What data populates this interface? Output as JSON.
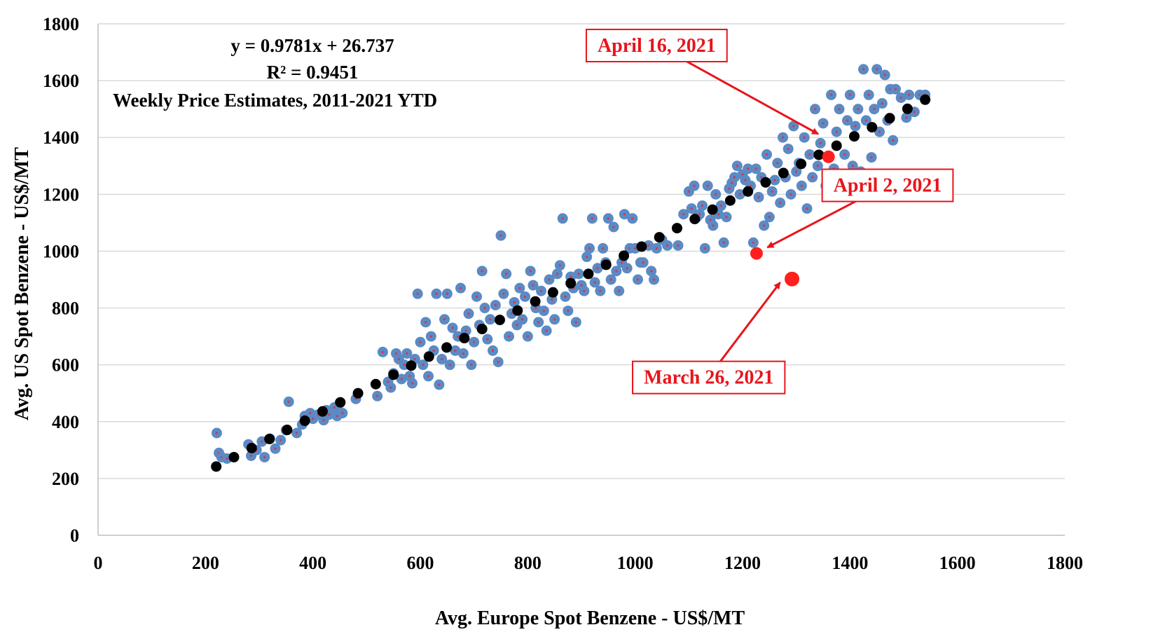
{
  "chart_data": {
    "type": "scatter",
    "xlabel": "Avg. Europe Spot Benzene - US$/MT",
    "ylabel": "Avg. US Spot Benzene - US$/MT",
    "xlim": [
      0,
      1800
    ],
    "ylim": [
      0,
      1800
    ],
    "x_ticks": [
      0,
      200,
      400,
      600,
      800,
      1000,
      1200,
      1400,
      1600,
      1800
    ],
    "y_ticks": [
      0,
      200,
      400,
      600,
      800,
      1000,
      1200,
      1400,
      1600,
      1800
    ],
    "grid": "horizontal",
    "legend": "none",
    "annotations": {
      "equation": "y = 0.9781x + 26.737",
      "r_squared": "R² = 0.9451",
      "note": "Weekly  Price Estimates, 2011-2021 YTD"
    },
    "colors": {
      "weekly": "#5b8ac4",
      "weekly_dot": "#d9364a",
      "fit": "#000000",
      "highlight": "#ff1f1f",
      "callout": "#e8141b"
    },
    "series": [
      {
        "role": "weekly",
        "points": [
          [
            221,
            360
          ],
          [
            225,
            290
          ],
          [
            230,
            275
          ],
          [
            240,
            270
          ],
          [
            280,
            320
          ],
          [
            285,
            280
          ],
          [
            295,
            300
          ],
          [
            305,
            330
          ],
          [
            310,
            275
          ],
          [
            320,
            340
          ],
          [
            330,
            305
          ],
          [
            340,
            335
          ],
          [
            350,
            370
          ],
          [
            355,
            470
          ],
          [
            370,
            360
          ],
          [
            380,
            390
          ],
          [
            385,
            420
          ],
          [
            395,
            430
          ],
          [
            400,
            410
          ],
          [
            410,
            425
          ],
          [
            420,
            405
          ],
          [
            425,
            440
          ],
          [
            430,
            425
          ],
          [
            440,
            450
          ],
          [
            445,
            420
          ],
          [
            450,
            465
          ],
          [
            455,
            430
          ],
          [
            480,
            480
          ],
          [
            520,
            490
          ],
          [
            530,
            645
          ],
          [
            540,
            540
          ],
          [
            545,
            520
          ],
          [
            550,
            570
          ],
          [
            555,
            640
          ],
          [
            560,
            620
          ],
          [
            565,
            550
          ],
          [
            570,
            600
          ],
          [
            575,
            640
          ],
          [
            580,
            560
          ],
          [
            585,
            535
          ],
          [
            590,
            620
          ],
          [
            595,
            850
          ],
          [
            600,
            680
          ],
          [
            605,
            600
          ],
          [
            610,
            750
          ],
          [
            615,
            560
          ],
          [
            620,
            700
          ],
          [
            625,
            650
          ],
          [
            630,
            850
          ],
          [
            635,
            530
          ],
          [
            640,
            620
          ],
          [
            645,
            760
          ],
          [
            650,
            850
          ],
          [
            655,
            600
          ],
          [
            660,
            730
          ],
          [
            665,
            650
          ],
          [
            670,
            700
          ],
          [
            675,
            870
          ],
          [
            680,
            640
          ],
          [
            685,
            720
          ],
          [
            690,
            780
          ],
          [
            695,
            600
          ],
          [
            700,
            680
          ],
          [
            705,
            840
          ],
          [
            710,
            740
          ],
          [
            715,
            930
          ],
          [
            720,
            800
          ],
          [
            725,
            690
          ],
          [
            730,
            760
          ],
          [
            735,
            650
          ],
          [
            740,
            810
          ],
          [
            745,
            610
          ],
          [
            750,
            1055
          ],
          [
            755,
            850
          ],
          [
            760,
            920
          ],
          [
            765,
            700
          ],
          [
            770,
            780
          ],
          [
            775,
            820
          ],
          [
            780,
            740
          ],
          [
            785,
            870
          ],
          [
            790,
            760
          ],
          [
            795,
            840
          ],
          [
            800,
            700
          ],
          [
            805,
            930
          ],
          [
            810,
            880
          ],
          [
            815,
            800
          ],
          [
            820,
            750
          ],
          [
            825,
            860
          ],
          [
            830,
            790
          ],
          [
            835,
            720
          ],
          [
            840,
            900
          ],
          [
            845,
            830
          ],
          [
            850,
            760
          ],
          [
            855,
            920
          ],
          [
            860,
            950
          ],
          [
            865,
            1115
          ],
          [
            870,
            840
          ],
          [
            875,
            790
          ],
          [
            880,
            910
          ],
          [
            885,
            870
          ],
          [
            890,
            750
          ],
          [
            895,
            920
          ],
          [
            900,
            880
          ],
          [
            905,
            860
          ],
          [
            910,
            980
          ],
          [
            915,
            1010
          ],
          [
            920,
            1115
          ],
          [
            925,
            890
          ],
          [
            930,
            940
          ],
          [
            935,
            860
          ],
          [
            940,
            1010
          ],
          [
            945,
            960
          ],
          [
            950,
            1115
          ],
          [
            955,
            900
          ],
          [
            960,
            1085
          ],
          [
            965,
            930
          ],
          [
            970,
            860
          ],
          [
            975,
            960
          ],
          [
            980,
            1130
          ],
          [
            985,
            940
          ],
          [
            990,
            1010
          ],
          [
            995,
            1115
          ],
          [
            1000,
            1010
          ],
          [
            1005,
            900
          ],
          [
            1010,
            960
          ],
          [
            1015,
            960
          ],
          [
            1025,
            1020
          ],
          [
            1030,
            930
          ],
          [
            1035,
            900
          ],
          [
            1040,
            1010
          ],
          [
            1050,
            1040
          ],
          [
            1060,
            1020
          ],
          [
            1080,
            1020
          ],
          [
            1090,
            1130
          ],
          [
            1100,
            1210
          ],
          [
            1105,
            1150
          ],
          [
            1110,
            1230
          ],
          [
            1115,
            1120
          ],
          [
            1120,
            1130
          ],
          [
            1125,
            1160
          ],
          [
            1130,
            1010
          ],
          [
            1135,
            1230
          ],
          [
            1140,
            1110
          ],
          [
            1145,
            1090
          ],
          [
            1150,
            1200
          ],
          [
            1155,
            1130
          ],
          [
            1160,
            1160
          ],
          [
            1165,
            1030
          ],
          [
            1170,
            1120
          ],
          [
            1175,
            1220
          ],
          [
            1180,
            1240
          ],
          [
            1185,
            1260
          ],
          [
            1190,
            1300
          ],
          [
            1195,
            1200
          ],
          [
            1200,
            1270
          ],
          [
            1205,
            1250
          ],
          [
            1210,
            1290
          ],
          [
            1215,
            1230
          ],
          [
            1220,
            1030
          ],
          [
            1225,
            1290
          ],
          [
            1230,
            1190
          ],
          [
            1235,
            1260
          ],
          [
            1240,
            1090
          ],
          [
            1245,
            1340
          ],
          [
            1250,
            1120
          ],
          [
            1255,
            1210
          ],
          [
            1260,
            1250
          ],
          [
            1265,
            1310
          ],
          [
            1270,
            1170
          ],
          [
            1275,
            1400
          ],
          [
            1280,
            1260
          ],
          [
            1285,
            1360
          ],
          [
            1290,
            1200
          ],
          [
            1295,
            1440
          ],
          [
            1300,
            1280
          ],
          [
            1305,
            1310
          ],
          [
            1310,
            1230
          ],
          [
            1315,
            1400
          ],
          [
            1320,
            1150
          ],
          [
            1325,
            1340
          ],
          [
            1330,
            1260
          ],
          [
            1335,
            1500
          ],
          [
            1340,
            1300
          ],
          [
            1345,
            1380
          ],
          [
            1350,
            1450
          ],
          [
            1355,
            1230
          ],
          [
            1360,
            1330
          ],
          [
            1365,
            1550
          ],
          [
            1370,
            1290
          ],
          [
            1375,
            1420
          ],
          [
            1380,
            1500
          ],
          [
            1385,
            1210
          ],
          [
            1390,
            1340
          ],
          [
            1395,
            1460
          ],
          [
            1400,
            1550
          ],
          [
            1405,
            1300
          ],
          [
            1410,
            1440
          ],
          [
            1415,
            1500
          ],
          [
            1420,
            1280
          ],
          [
            1425,
            1640
          ],
          [
            1430,
            1460
          ],
          [
            1435,
            1550
          ],
          [
            1440,
            1330
          ],
          [
            1445,
            1500
          ],
          [
            1450,
            1640
          ],
          [
            1455,
            1420
          ],
          [
            1460,
            1520
          ],
          [
            1465,
            1620
          ],
          [
            1470,
            1460
          ],
          [
            1475,
            1570
          ],
          [
            1480,
            1390
          ],
          [
            1485,
            1570
          ],
          [
            1495,
            1540
          ],
          [
            1505,
            1470
          ],
          [
            1510,
            1550
          ],
          [
            1520,
            1490
          ],
          [
            1530,
            1550
          ],
          [
            1540,
            1550
          ]
        ]
      },
      {
        "role": "fit",
        "points": [
          [
            220,
            242
          ],
          [
            253,
            275
          ],
          [
            286,
            307
          ],
          [
            319,
            339
          ],
          [
            352,
            371
          ],
          [
            385,
            403
          ],
          [
            418,
            436
          ],
          [
            451,
            468
          ],
          [
            484,
            500
          ],
          [
            517,
            532
          ],
          [
            550,
            565
          ],
          [
            583,
            597
          ],
          [
            616,
            629
          ],
          [
            649,
            661
          ],
          [
            682,
            694
          ],
          [
            715,
            726
          ],
          [
            748,
            758
          ],
          [
            781,
            791
          ],
          [
            814,
            823
          ],
          [
            847,
            855
          ],
          [
            880,
            887
          ],
          [
            913,
            920
          ],
          [
            946,
            952
          ],
          [
            979,
            984
          ],
          [
            1012,
            1016
          ],
          [
            1045,
            1049
          ],
          [
            1078,
            1081
          ],
          [
            1111,
            1113
          ],
          [
            1144,
            1146
          ],
          [
            1177,
            1178
          ],
          [
            1210,
            1210
          ],
          [
            1243,
            1242
          ],
          [
            1276,
            1275
          ],
          [
            1309,
            1307
          ],
          [
            1342,
            1339
          ],
          [
            1375,
            1371
          ],
          [
            1408,
            1404
          ],
          [
            1441,
            1436
          ],
          [
            1474,
            1468
          ],
          [
            1507,
            1501
          ],
          [
            1540,
            1533
          ]
        ]
      },
      {
        "role": "highlight",
        "points": [
          [
            1360,
            1332
          ],
          [
            1226,
            992
          ],
          [
            1292,
            902
          ]
        ]
      }
    ],
    "callouts": [
      {
        "label": "April 16, 2021",
        "box": [
          1040,
          1726
        ],
        "target": [
          1341,
          1412
        ]
      },
      {
        "label": "April 2, 2021",
        "box": [
          1470,
          1234
        ],
        "target": [
          1246,
          1013
        ]
      },
      {
        "label": "March 26, 2021",
        "box": [
          1137,
          558
        ],
        "target": [
          1270,
          890
        ]
      }
    ]
  }
}
